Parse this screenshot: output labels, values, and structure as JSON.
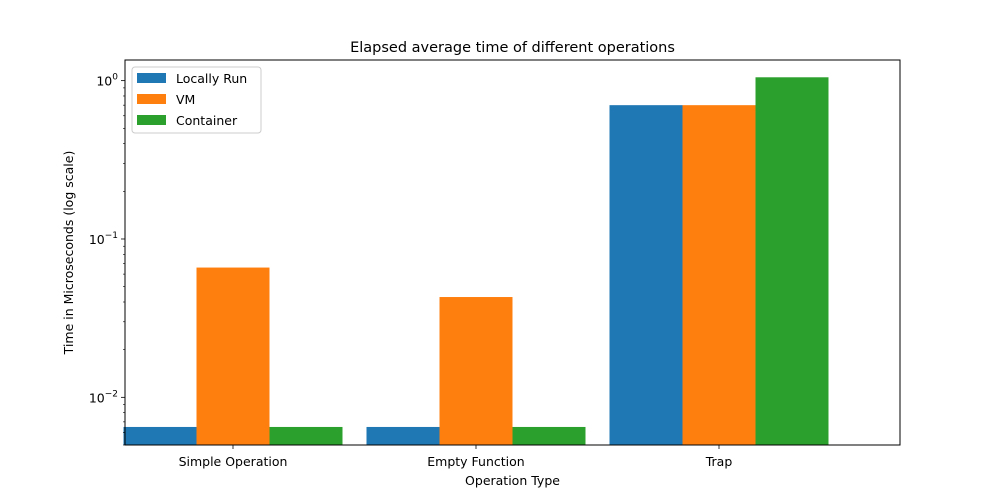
{
  "chart_data": {
    "type": "bar",
    "title": "Elapsed average time of different operations",
    "xlabel": "Operation Type",
    "ylabel": "Time in Microseconds (log scale)",
    "yscale": "log",
    "ylim": [
      0.005,
      1.35
    ],
    "yticks": [
      {
        "value": 0.01,
        "base": "10",
        "exp": "−2"
      },
      {
        "value": 0.1,
        "base": "10",
        "exp": "−1"
      },
      {
        "value": 1,
        "base": "10",
        "exp": "0"
      }
    ],
    "categories": [
      "Simple Operation",
      "Empty Function",
      "Trap"
    ],
    "series": [
      {
        "name": "Locally Run",
        "color": "#1f77b4",
        "values": [
          0.0065,
          0.0065,
          0.7
        ]
      },
      {
        "name": "VM",
        "color": "#ff7f0e",
        "values": [
          0.066,
          0.043,
          0.7
        ]
      },
      {
        "name": "Container",
        "color": "#2ca02c",
        "values": [
          0.0065,
          0.0065,
          1.05
        ]
      }
    ],
    "grid": false,
    "legend_position": "upper-left"
  }
}
